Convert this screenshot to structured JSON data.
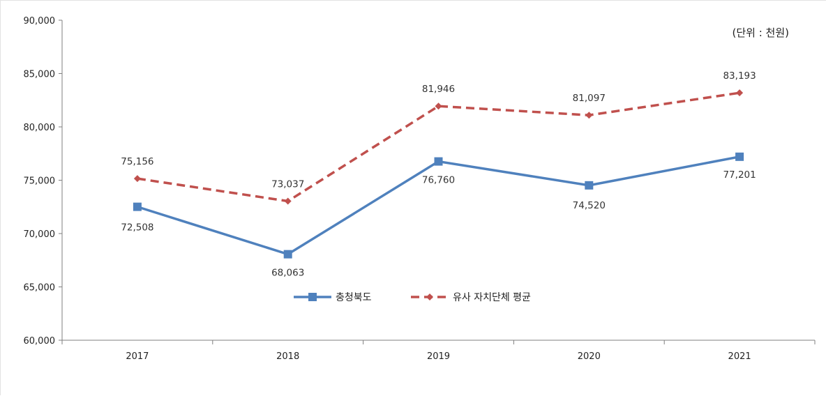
{
  "chart_data": {
    "type": "line",
    "unit_note": "(단위 : 천원)",
    "categories": [
      "2017",
      "2018",
      "2019",
      "2020",
      "2021"
    ],
    "ylim": [
      60000,
      90000
    ],
    "y_ticks": [
      "60,000",
      "65,000",
      "70,000",
      "75,000",
      "80,000",
      "85,000",
      "90,000"
    ],
    "grid": false,
    "legend_position": "center",
    "series": [
      {
        "name": "충청북도",
        "values": [
          72508,
          68063,
          76760,
          74520,
          77201
        ],
        "labels": [
          "72,508",
          "68,063",
          "76,760",
          "74,520",
          "77,201"
        ],
        "color": "#4f81bd",
        "marker": "square",
        "style": "solid"
      },
      {
        "name": "유사 자치단체 평균",
        "values": [
          75156,
          73037,
          81946,
          81097,
          83193
        ],
        "labels": [
          "75,156",
          "73,037",
          "81,946",
          "81,097",
          "83,193"
        ],
        "color": "#c0504d",
        "marker": "diamond",
        "style": "dashed"
      }
    ]
  }
}
